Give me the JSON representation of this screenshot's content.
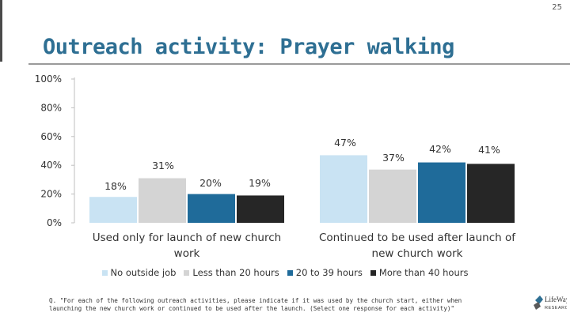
{
  "page": {
    "number": "25",
    "title": "Outreach activity: Prayer walking",
    "footnote": "Q. \"For each of the following outreach activities, please indicate if it was used by the church start, either when launching the new church work or continued to be used after the launch. (Select one response for each activity)\"",
    "logo_text": "LifeWay RESEARCH"
  },
  "chart_data": {
    "type": "bar",
    "title": "Outreach activity: Prayer walking",
    "xlabel": "",
    "ylabel": "",
    "ylim": [
      0,
      100
    ],
    "yticks": [
      0,
      20,
      40,
      60,
      80,
      100
    ],
    "ytick_labels": [
      "0%",
      "20%",
      "40%",
      "60%",
      "80%",
      "100%"
    ],
    "grid": false,
    "legend_position": "bottom",
    "categories": [
      "Used only for launch of new church work",
      "Continued to be used after launch of new church work"
    ],
    "category_lines": [
      [
        "Used only for launch of new church",
        "work"
      ],
      [
        "Continued to be used after launch of",
        "new church work"
      ]
    ],
    "series": [
      {
        "name": "No outside job",
        "values": [
          18,
          47
        ],
        "labels": [
          "18%",
          "47%"
        ],
        "color": "#c9e3f3"
      },
      {
        "name": "Less than 20 hours",
        "values": [
          31,
          37
        ],
        "labels": [
          "31%",
          "37%"
        ],
        "color": "#d4d4d4"
      },
      {
        "name": "20 to 39 hours",
        "values": [
          20,
          42
        ],
        "labels": [
          "20%",
          "42%"
        ],
        "color": "#1f6b9a"
      },
      {
        "name": "More than 40 hours",
        "values": [
          19,
          41
        ],
        "labels": [
          "19%",
          "41%"
        ],
        "color": "#262626"
      }
    ]
  }
}
